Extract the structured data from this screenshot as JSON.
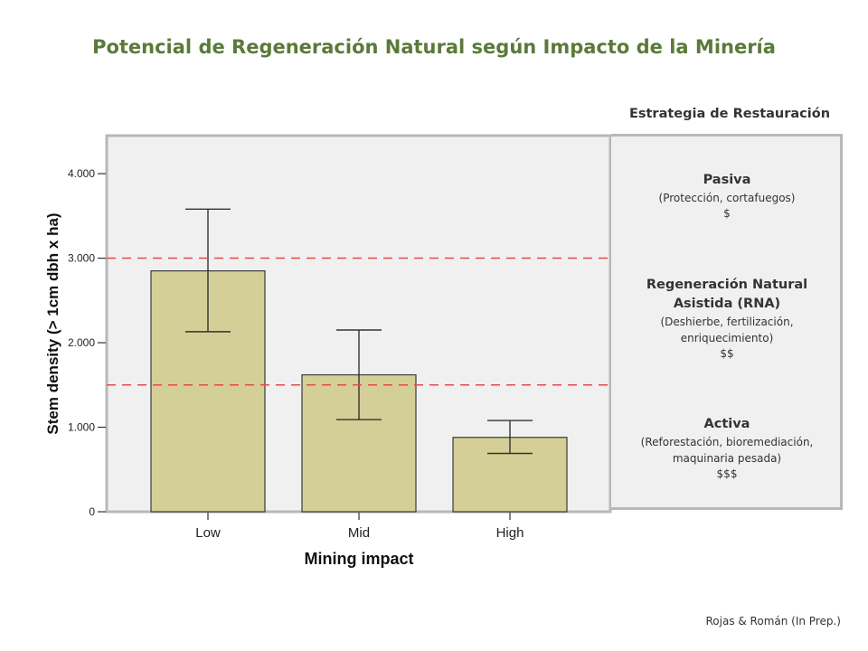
{
  "title": "Potencial de Regeneración Natural según Impacto de la Minería",
  "strategy_header": "Estrategia de Restauración",
  "strategies": [
    {
      "name": "Pasiva",
      "desc": "(Protección, cortafuegos)",
      "cost": "$"
    },
    {
      "name": "Regeneración Natural Asistida (RNA)",
      "desc": "(Deshierbe, fertilización, enriquecimiento)",
      "cost": "$$"
    },
    {
      "name": "Activa",
      "desc": "(Reforestación, bioremediación, maquinaria pesada)",
      "cost": "$$$"
    }
  ],
  "source": "Rojas & Román (In Prep.)",
  "colors": {
    "title": "#5b7a3a",
    "bar_fill": "#d4cf96",
    "plot_bg": "#f0f0f0",
    "threshold_line": "#e84848"
  },
  "chart_data": {
    "type": "bar",
    "categories": [
      "Low",
      "Mid",
      "High"
    ],
    "values": [
      2850,
      1620,
      880
    ],
    "error_low": [
      2130,
      1090,
      690
    ],
    "error_high": [
      3580,
      2150,
      1080
    ],
    "xlabel": "Mining impact",
    "ylabel": "Stem density (> 1cm dbh x ha)",
    "ylim": [
      0,
      4450
    ],
    "yticks": [
      0,
      1000,
      2000,
      3000,
      4000
    ],
    "ytick_labels": [
      "0",
      "1.000",
      "2.000",
      "3.000",
      "4.000"
    ],
    "thresholds": [
      3000,
      1500
    ],
    "grid": false,
    "legend": "none"
  }
}
